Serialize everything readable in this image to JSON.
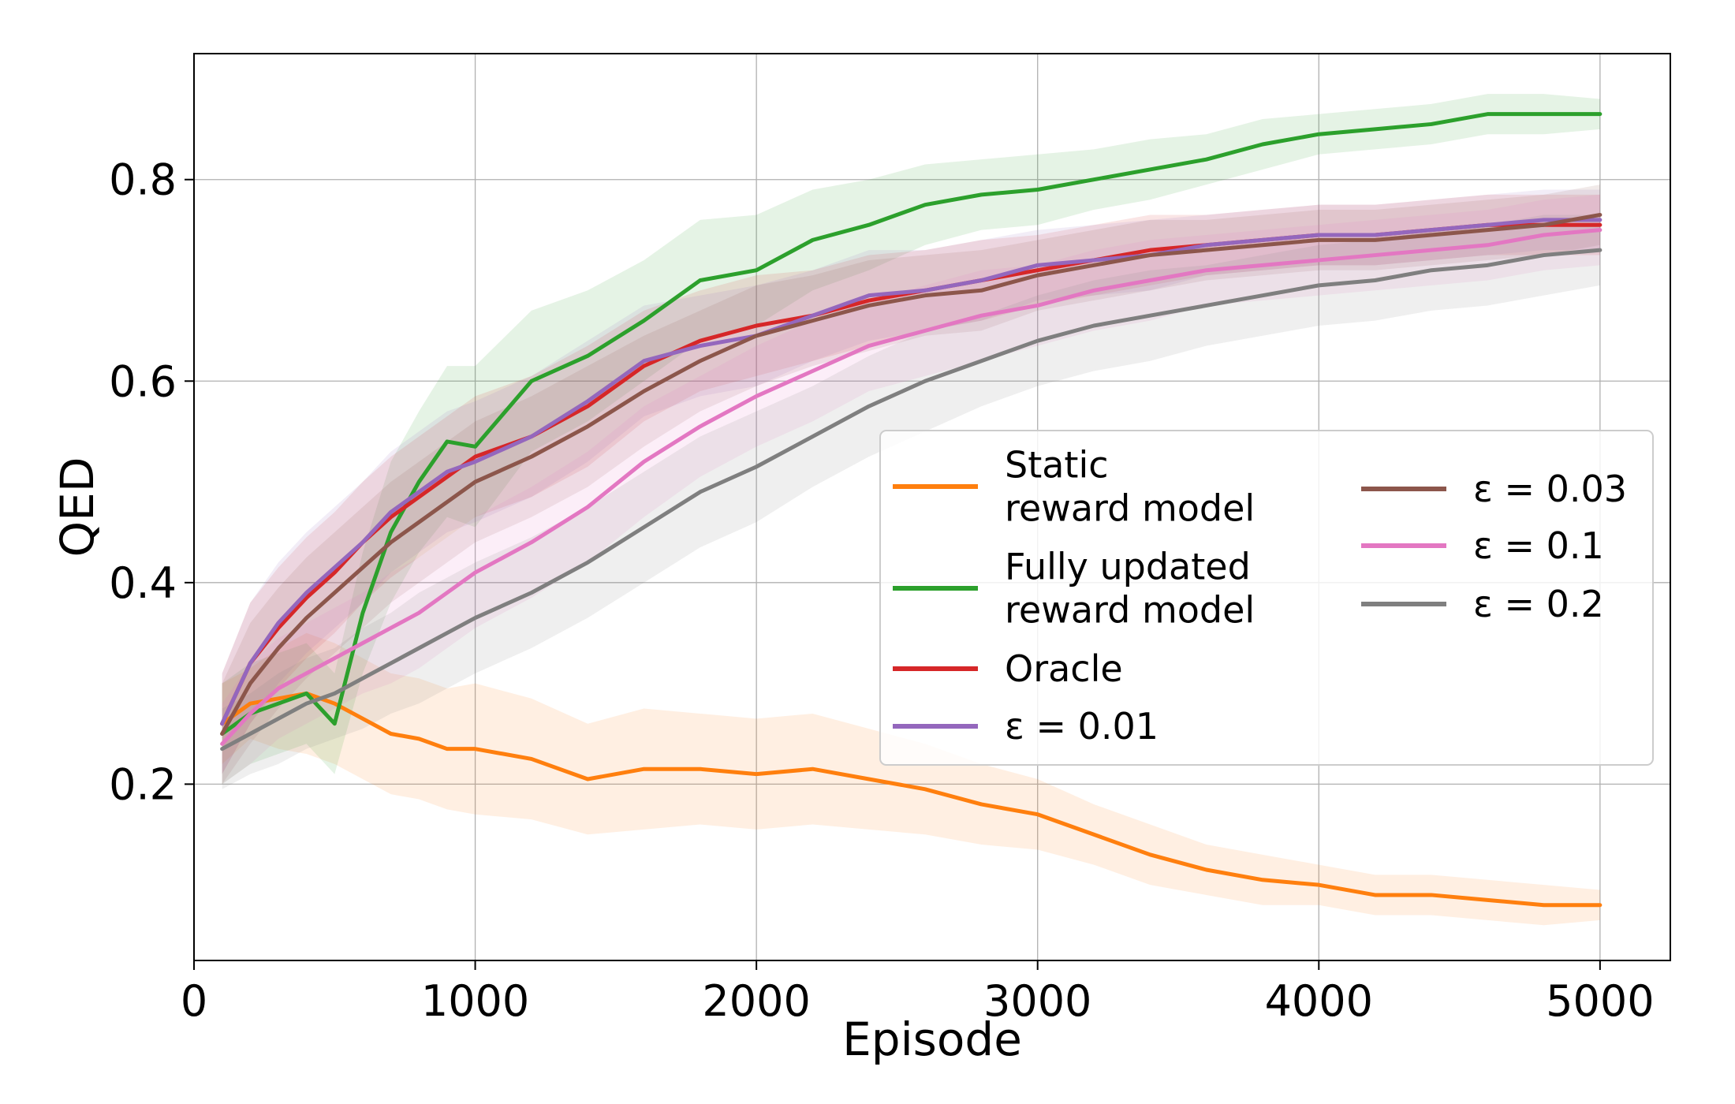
{
  "chart_data": {
    "type": "line",
    "title": "",
    "xlabel": "Episode",
    "ylabel": "QED",
    "xlim": [
      0,
      5250
    ],
    "ylim": [
      0.025,
      0.925
    ],
    "xticks": [
      0,
      1000,
      2000,
      3000,
      4000,
      5000
    ],
    "xtick_labels": [
      "0",
      "1000",
      "2000",
      "3000",
      "4000",
      "5000"
    ],
    "yticks": [
      0.2,
      0.4,
      0.6,
      0.8
    ],
    "ytick_labels": [
      "0.2",
      "0.4",
      "0.6",
      "0.8"
    ],
    "grid": true,
    "legend_position": "center-right",
    "x": [
      100,
      200,
      300,
      400,
      500,
      600,
      700,
      800,
      900,
      1000,
      1200,
      1400,
      1600,
      1800,
      2000,
      2200,
      2400,
      2600,
      2800,
      3000,
      3200,
      3400,
      3600,
      3800,
      4000,
      4200,
      4400,
      4600,
      4800,
      5000
    ],
    "series": [
      {
        "name": "Static reward model",
        "label_lines": [
          "Static",
          "reward model"
        ],
        "color": "#ff7f0e",
        "values": [
          0.26,
          0.28,
          0.285,
          0.29,
          0.28,
          0.265,
          0.25,
          0.245,
          0.235,
          0.235,
          0.225,
          0.205,
          0.215,
          0.215,
          0.21,
          0.215,
          0.205,
          0.195,
          0.18,
          0.17,
          0.15,
          0.13,
          0.115,
          0.105,
          0.1,
          0.09,
          0.09,
          0.085,
          0.08,
          0.08
        ],
        "band": [
          0.04,
          0.035,
          0.05,
          0.06,
          0.06,
          0.06,
          0.06,
          0.06,
          0.06,
          0.065,
          0.06,
          0.055,
          0.06,
          0.055,
          0.055,
          0.055,
          0.05,
          0.045,
          0.04,
          0.035,
          0.03,
          0.03,
          0.025,
          0.025,
          0.02,
          0.02,
          0.02,
          0.02,
          0.02,
          0.015
        ]
      },
      {
        "name": "Fully updated reward model",
        "label_lines": [
          "Fully updated",
          "reward model"
        ],
        "color": "#2ca02c",
        "values": [
          0.25,
          0.27,
          0.28,
          0.29,
          0.26,
          0.37,
          0.45,
          0.5,
          0.54,
          0.535,
          0.6,
          0.625,
          0.66,
          0.7,
          0.71,
          0.74,
          0.755,
          0.775,
          0.785,
          0.79,
          0.8,
          0.81,
          0.82,
          0.835,
          0.845,
          0.85,
          0.855,
          0.865,
          0.865,
          0.865
        ],
        "band": [
          0.05,
          0.05,
          0.05,
          0.05,
          0.05,
          0.06,
          0.07,
          0.07,
          0.075,
          0.08,
          0.07,
          0.065,
          0.06,
          0.06,
          0.055,
          0.05,
          0.045,
          0.04,
          0.035,
          0.035,
          0.03,
          0.03,
          0.025,
          0.025,
          0.02,
          0.02,
          0.02,
          0.02,
          0.02,
          0.015
        ]
      },
      {
        "name": "Oracle",
        "label_lines": [
          "Oracle"
        ],
        "color": "#d62728",
        "values": [
          0.26,
          0.32,
          0.355,
          0.385,
          0.41,
          0.44,
          0.465,
          0.485,
          0.505,
          0.525,
          0.545,
          0.575,
          0.615,
          0.64,
          0.655,
          0.665,
          0.68,
          0.69,
          0.7,
          0.71,
          0.72,
          0.73,
          0.735,
          0.74,
          0.745,
          0.745,
          0.75,
          0.755,
          0.755,
          0.755
        ],
        "band": [
          0.05,
          0.06,
          0.06,
          0.06,
          0.06,
          0.06,
          0.06,
          0.06,
          0.06,
          0.06,
          0.06,
          0.06,
          0.055,
          0.05,
          0.05,
          0.045,
          0.045,
          0.04,
          0.04,
          0.035,
          0.035,
          0.035,
          0.03,
          0.03,
          0.03,
          0.03,
          0.03,
          0.03,
          0.03,
          0.03
        ]
      },
      {
        "name": "ε = 0.01",
        "label_lines": [
          "ε = 0.01"
        ],
        "color": "#9467bd",
        "values": [
          0.26,
          0.32,
          0.36,
          0.39,
          0.415,
          0.44,
          0.47,
          0.49,
          0.51,
          0.52,
          0.545,
          0.58,
          0.62,
          0.635,
          0.645,
          0.665,
          0.685,
          0.69,
          0.7,
          0.715,
          0.72,
          0.725,
          0.735,
          0.74,
          0.745,
          0.745,
          0.75,
          0.755,
          0.76,
          0.76
        ],
        "band": [
          0.05,
          0.06,
          0.06,
          0.06,
          0.06,
          0.06,
          0.06,
          0.06,
          0.06,
          0.06,
          0.06,
          0.06,
          0.055,
          0.05,
          0.05,
          0.045,
          0.045,
          0.04,
          0.04,
          0.035,
          0.035,
          0.035,
          0.03,
          0.03,
          0.03,
          0.03,
          0.03,
          0.03,
          0.03,
          0.03
        ]
      },
      {
        "name": "ε = 0.03",
        "label_lines": [
          "ε = 0.03"
        ],
        "color": "#8c564b",
        "values": [
          0.25,
          0.3,
          0.335,
          0.365,
          0.39,
          0.415,
          0.44,
          0.46,
          0.48,
          0.5,
          0.525,
          0.555,
          0.59,
          0.62,
          0.645,
          0.66,
          0.675,
          0.685,
          0.69,
          0.705,
          0.715,
          0.725,
          0.73,
          0.735,
          0.74,
          0.74,
          0.745,
          0.75,
          0.755,
          0.765
        ],
        "band": [
          0.05,
          0.06,
          0.06,
          0.06,
          0.06,
          0.06,
          0.06,
          0.06,
          0.06,
          0.06,
          0.06,
          0.06,
          0.055,
          0.05,
          0.05,
          0.045,
          0.045,
          0.04,
          0.04,
          0.035,
          0.035,
          0.035,
          0.03,
          0.03,
          0.03,
          0.03,
          0.03,
          0.03,
          0.03,
          0.03
        ]
      },
      {
        "name": "ε = 0.1",
        "label_lines": [
          "ε = 0.1"
        ],
        "color": "#e377c2",
        "values": [
          0.24,
          0.27,
          0.295,
          0.31,
          0.325,
          0.34,
          0.355,
          0.37,
          0.39,
          0.41,
          0.44,
          0.475,
          0.52,
          0.555,
          0.585,
          0.61,
          0.635,
          0.65,
          0.665,
          0.675,
          0.69,
          0.7,
          0.71,
          0.715,
          0.72,
          0.725,
          0.73,
          0.735,
          0.745,
          0.75
        ],
        "band": [
          0.04,
          0.05,
          0.05,
          0.05,
          0.05,
          0.05,
          0.055,
          0.055,
          0.055,
          0.055,
          0.055,
          0.055,
          0.055,
          0.05,
          0.05,
          0.05,
          0.045,
          0.045,
          0.045,
          0.04,
          0.04,
          0.04,
          0.035,
          0.035,
          0.035,
          0.035,
          0.035,
          0.035,
          0.035,
          0.035
        ]
      },
      {
        "name": "ε = 0.2",
        "label_lines": [
          "ε = 0.2"
        ],
        "color": "#7f7f7f",
        "values": [
          0.235,
          0.25,
          0.265,
          0.28,
          0.29,
          0.305,
          0.32,
          0.335,
          0.35,
          0.365,
          0.39,
          0.42,
          0.455,
          0.49,
          0.515,
          0.545,
          0.575,
          0.6,
          0.62,
          0.64,
          0.655,
          0.665,
          0.675,
          0.685,
          0.695,
          0.7,
          0.71,
          0.715,
          0.725,
          0.73
        ],
        "band": [
          0.04,
          0.04,
          0.045,
          0.045,
          0.045,
          0.05,
          0.05,
          0.055,
          0.055,
          0.055,
          0.055,
          0.055,
          0.055,
          0.055,
          0.055,
          0.05,
          0.05,
          0.05,
          0.045,
          0.045,
          0.045,
          0.045,
          0.04,
          0.04,
          0.04,
          0.04,
          0.04,
          0.04,
          0.04,
          0.035
        ]
      }
    ]
  }
}
